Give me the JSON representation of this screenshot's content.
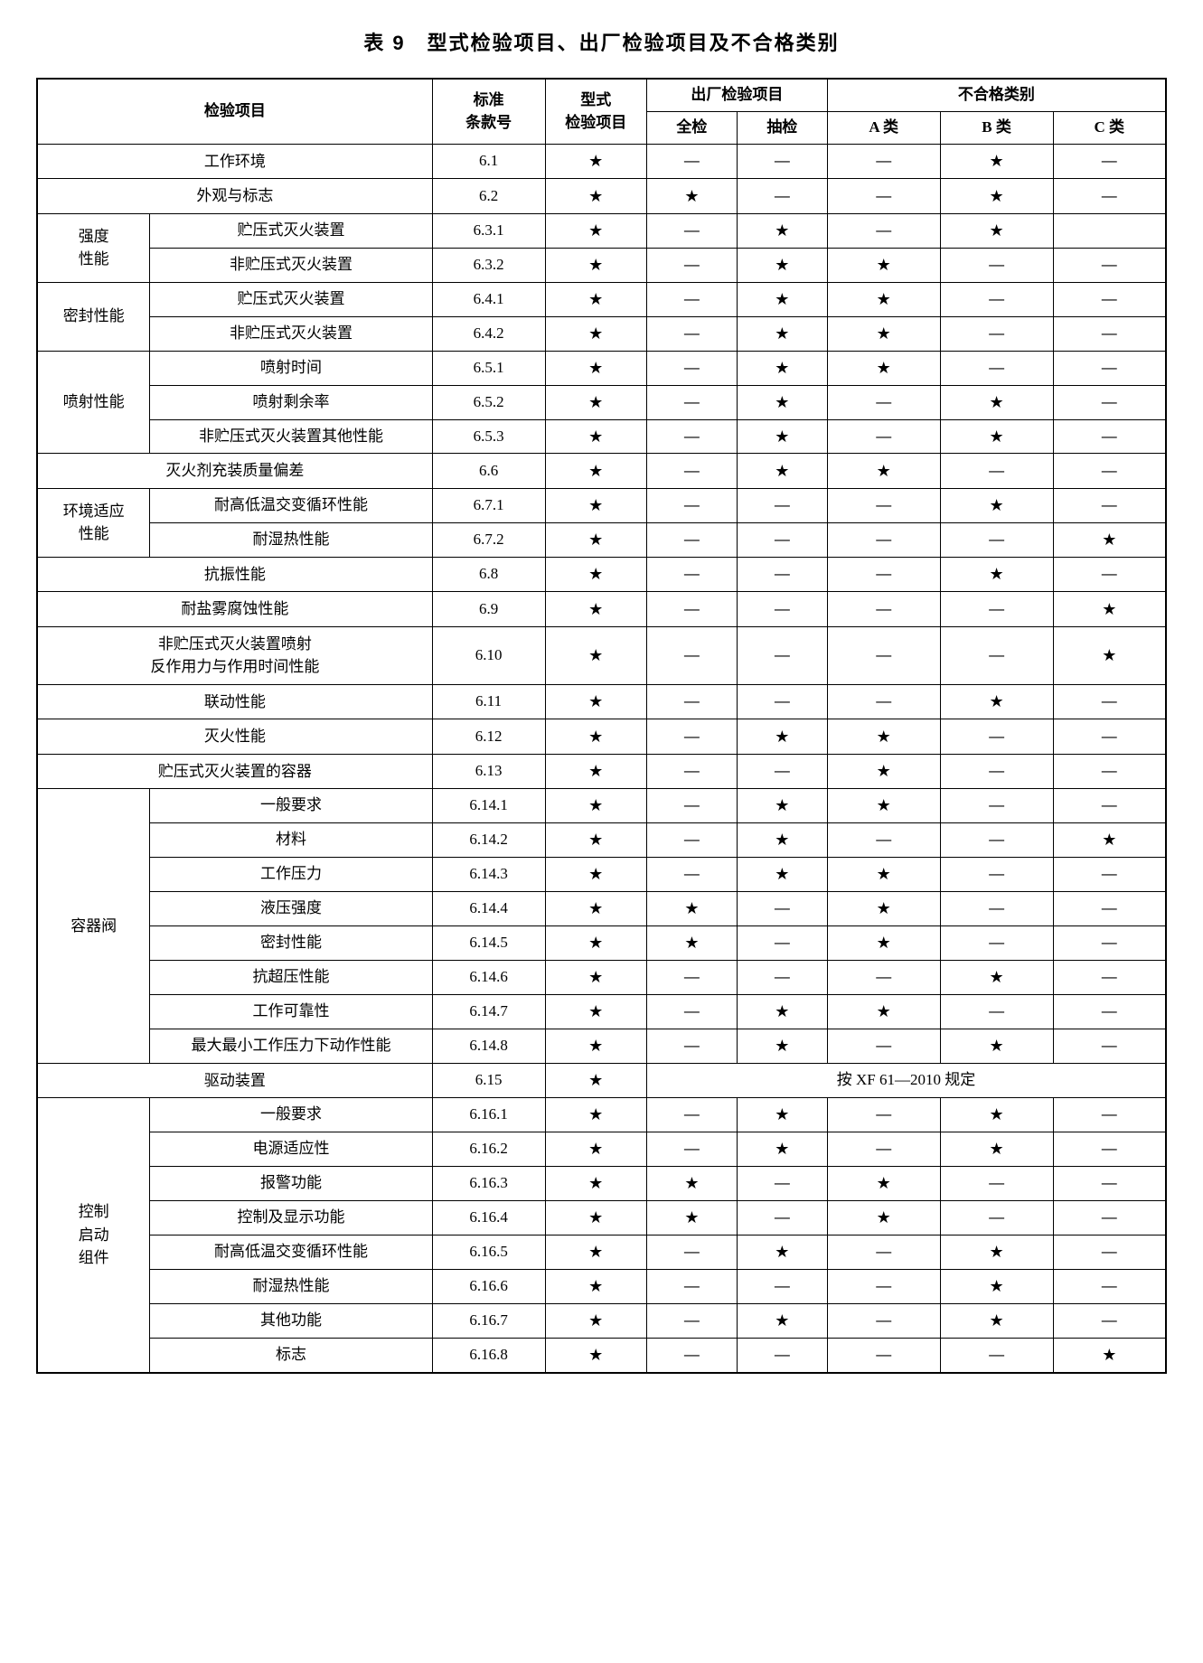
{
  "title": "表 9　型式检验项目、出厂检验项目及不合格类别",
  "headers": {
    "item": "检验项目",
    "std": "标准\n条款号",
    "type": "型式\n检验项目",
    "factory": "出厂检验项目",
    "full": "全检",
    "sample": "抽检",
    "nonconf": "不合格类别",
    "a": "A 类",
    "b": "B 类",
    "c": "C 类"
  },
  "symbols": {
    "star": "★",
    "dash": "—"
  },
  "spec_note": "按 XF 61—2010 规定",
  "groups": {
    "strength": "强度\n性能",
    "seal": "密封性能",
    "spray": "喷射性能",
    "env": "环境适应\n性能",
    "valve": "容器阀",
    "ctrl": "控制\n启动\n组件"
  },
  "rows": [
    {
      "span": "full",
      "name": "工作环境",
      "std": "6.1",
      "t": "s",
      "q": "d",
      "ch": "d",
      "a": "d",
      "b": "s",
      "c": "d"
    },
    {
      "span": "full",
      "name": "外观与标志",
      "std": "6.2",
      "t": "s",
      "q": "s",
      "ch": "d",
      "a": "d",
      "b": "s",
      "c": "d"
    },
    {
      "group": "strength",
      "grows": 2,
      "name": "贮压式灭火装置",
      "std": "6.3.1",
      "t": "s",
      "q": "d",
      "ch": "s",
      "a": "d",
      "b": "s",
      "c": ""
    },
    {
      "name": "非贮压式灭火装置",
      "std": "6.3.2",
      "t": "s",
      "q": "d",
      "ch": "s",
      "a": "s",
      "b": "d",
      "c": "d"
    },
    {
      "group": "seal",
      "grows": 2,
      "name": "贮压式灭火装置",
      "std": "6.4.1",
      "t": "s",
      "q": "d",
      "ch": "s",
      "a": "s",
      "b": "d",
      "c": "d"
    },
    {
      "name": "非贮压式灭火装置",
      "std": "6.4.2",
      "t": "s",
      "q": "d",
      "ch": "s",
      "a": "s",
      "b": "d",
      "c": "d"
    },
    {
      "group": "spray",
      "grows": 3,
      "name": "喷射时间",
      "std": "6.5.1",
      "t": "s",
      "q": "d",
      "ch": "s",
      "a": "s",
      "b": "d",
      "c": "d"
    },
    {
      "name": "喷射剩余率",
      "std": "6.5.2",
      "t": "s",
      "q": "d",
      "ch": "s",
      "a": "d",
      "b": "s",
      "c": "d"
    },
    {
      "name": "非贮压式灭火装置其他性能",
      "std": "6.5.3",
      "t": "s",
      "q": "d",
      "ch": "s",
      "a": "d",
      "b": "s",
      "c": "d"
    },
    {
      "span": "full",
      "name": "灭火剂充装质量偏差",
      "std": "6.6",
      "t": "s",
      "q": "d",
      "ch": "s",
      "a": "s",
      "b": "d",
      "c": "d"
    },
    {
      "group": "env",
      "grows": 2,
      "name": "耐高低温交变循环性能",
      "std": "6.7.1",
      "t": "s",
      "q": "d",
      "ch": "d",
      "a": "d",
      "b": "s",
      "c": "d"
    },
    {
      "name": "耐湿热性能",
      "std": "6.7.2",
      "t": "s",
      "q": "d",
      "ch": "d",
      "a": "d",
      "b": "d",
      "c": "s"
    },
    {
      "span": "full",
      "name": "抗振性能",
      "std": "6.8",
      "t": "s",
      "q": "d",
      "ch": "d",
      "a": "d",
      "b": "s",
      "c": "d"
    },
    {
      "span": "full",
      "name": "耐盐雾腐蚀性能",
      "std": "6.9",
      "t": "s",
      "q": "d",
      "ch": "d",
      "a": "d",
      "b": "d",
      "c": "s"
    },
    {
      "span": "full",
      "name": "非贮压式灭火装置喷射\n反作用力与作用时间性能",
      "std": "6.10",
      "t": "s",
      "q": "d",
      "ch": "d",
      "a": "d",
      "b": "d",
      "c": "s"
    },
    {
      "span": "full",
      "name": "联动性能",
      "std": "6.11",
      "t": "s",
      "q": "d",
      "ch": "d",
      "a": "d",
      "b": "s",
      "c": "d"
    },
    {
      "span": "full",
      "name": "灭火性能",
      "std": "6.12",
      "t": "s",
      "q": "d",
      "ch": "s",
      "a": "s",
      "b": "d",
      "c": "d"
    },
    {
      "span": "full",
      "name": "贮压式灭火装置的容器",
      "std": "6.13",
      "t": "s",
      "q": "d",
      "ch": "d",
      "a": "s",
      "b": "d",
      "c": "d"
    },
    {
      "group": "valve",
      "grows": 8,
      "name": "一般要求",
      "std": "6.14.1",
      "t": "s",
      "q": "d",
      "ch": "s",
      "a": "s",
      "b": "d",
      "c": "d"
    },
    {
      "name": "材料",
      "std": "6.14.2",
      "t": "s",
      "q": "d",
      "ch": "s",
      "a": "d",
      "b": "d",
      "c": "s"
    },
    {
      "name": "工作压力",
      "std": "6.14.3",
      "t": "s",
      "q": "d",
      "ch": "s",
      "a": "s",
      "b": "d",
      "c": "d"
    },
    {
      "name": "液压强度",
      "std": "6.14.4",
      "t": "s",
      "q": "s",
      "ch": "d",
      "a": "s",
      "b": "d",
      "c": "d"
    },
    {
      "name": "密封性能",
      "std": "6.14.5",
      "t": "s",
      "q": "s",
      "ch": "d",
      "a": "s",
      "b": "d",
      "c": "d"
    },
    {
      "name": "抗超压性能",
      "std": "6.14.6",
      "t": "s",
      "q": "d",
      "ch": "d",
      "a": "d",
      "b": "s",
      "c": "d"
    },
    {
      "name": "工作可靠性",
      "std": "6.14.7",
      "t": "s",
      "q": "d",
      "ch": "s",
      "a": "s",
      "b": "d",
      "c": "d"
    },
    {
      "name": "最大最小工作压力下动作性能",
      "std": "6.14.8",
      "t": "s",
      "q": "d",
      "ch": "s",
      "a": "d",
      "b": "s",
      "c": "d"
    },
    {
      "span": "full",
      "name": "驱动装置",
      "std": "6.15",
      "t": "s",
      "spec": true
    },
    {
      "group": "ctrl",
      "grows": 8,
      "name": "一般要求",
      "std": "6.16.1",
      "t": "s",
      "q": "d",
      "ch": "s",
      "a": "d",
      "b": "s",
      "c": "d"
    },
    {
      "name": "电源适应性",
      "std": "6.16.2",
      "t": "s",
      "q": "d",
      "ch": "s",
      "a": "d",
      "b": "s",
      "c": "d"
    },
    {
      "name": "报警功能",
      "std": "6.16.3",
      "t": "s",
      "q": "s",
      "ch": "d",
      "a": "s",
      "b": "d",
      "c": "d"
    },
    {
      "name": "控制及显示功能",
      "std": "6.16.4",
      "t": "s",
      "q": "s",
      "ch": "d",
      "a": "s",
      "b": "d",
      "c": "d"
    },
    {
      "name": "耐高低温交变循环性能",
      "std": "6.16.5",
      "t": "s",
      "q": "d",
      "ch": "s",
      "a": "d",
      "b": "s",
      "c": "d"
    },
    {
      "name": "耐湿热性能",
      "std": "6.16.6",
      "t": "s",
      "q": "d",
      "ch": "d",
      "a": "d",
      "b": "s",
      "c": "d"
    },
    {
      "name": "其他功能",
      "std": "6.16.7",
      "t": "s",
      "q": "d",
      "ch": "s",
      "a": "d",
      "b": "s",
      "c": "d"
    },
    {
      "name": "标志",
      "std": "6.16.8",
      "t": "s",
      "q": "d",
      "ch": "d",
      "a": "d",
      "b": "d",
      "c": "s"
    }
  ]
}
